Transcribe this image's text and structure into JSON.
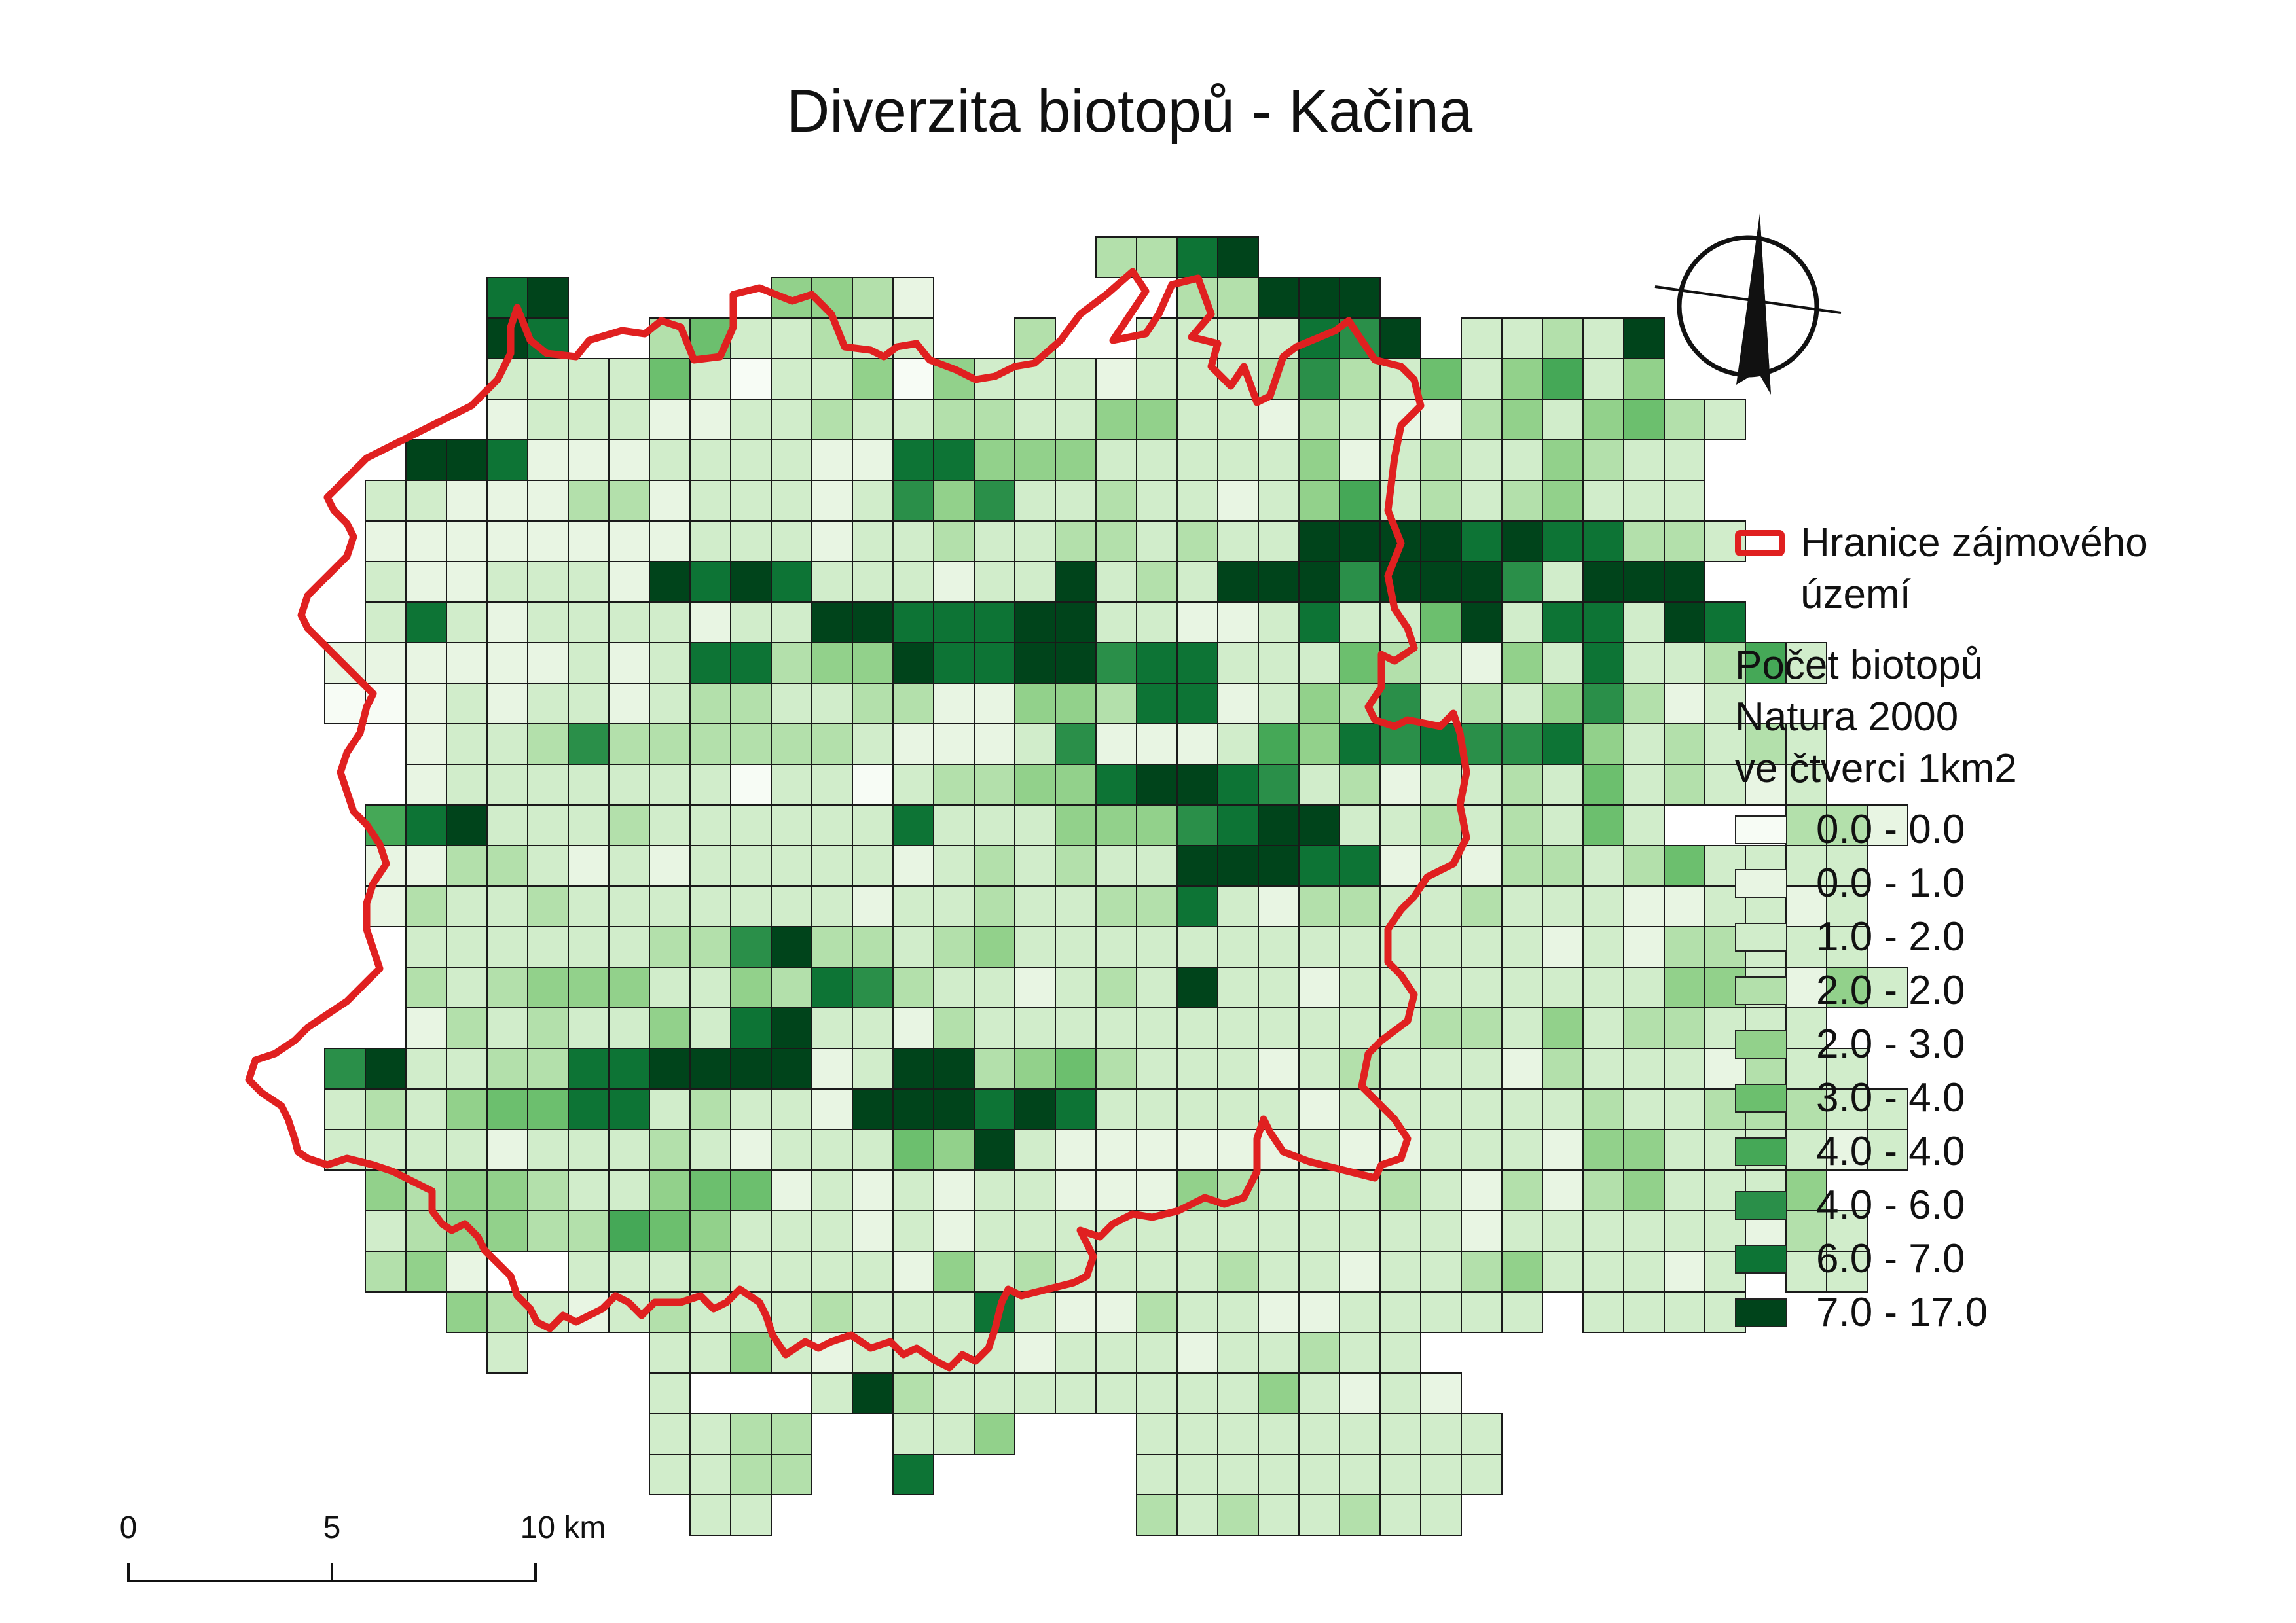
{
  "title": "Diverzita biotopů - Kačina",
  "legend": {
    "boundary_label": "Hranice zájmového\n   území",
    "boundary_color": "#e02020",
    "class_title": "Počet biotopů\n Natura 2000\n ve čtverci 1km2",
    "classes": [
      {
        "label": "0.0 - 0.0",
        "color": "#f7fcf5"
      },
      {
        "label": "0.0 - 1.0",
        "color": "#e8f5e3"
      },
      {
        "label": "1.0 - 2.0",
        "color": "#d1edcb"
      },
      {
        "label": "2.0 - 2.0",
        "color": "#b3e0ab"
      },
      {
        "label": "2.0 - 3.0",
        "color": "#92d18b"
      },
      {
        "label": "3.0 - 4.0",
        "color": "#6cbf6e"
      },
      {
        "label": "4.0 - 4.0",
        "color": "#45a857"
      },
      {
        "label": "4.0 - 6.0",
        "color": "#2a8f49"
      },
      {
        "label": "6.0 - 7.0",
        "color": "#0d7435"
      },
      {
        "label": "7.0 - 17.0",
        "color": "#00441b"
      }
    ]
  },
  "scalebar": {
    "labels": [
      "0",
      "5",
      "10 km"
    ],
    "values_km": [
      0,
      5,
      10
    ]
  },
  "north_arrow": "north-arrow-icon",
  "grid_classes": [
    "..........................................",
    ".....................3389.................",
    "......89.....4431......33999..............",
    "......98..3522322..3..2222879.22329.......",
    "......22225202240422212223732524624.......",
    "......1222112232233224422132113424532.....",
    "....99811122221188444222224123224322......",
    "...221113312221274722322124623234222......",
    "...1111111122212232233232299998988332.....",
    "...211222198982221229232999799972999......",
    "...2821222212299888992211282259288298.....",
    "..1111112128834498899788222532142822362...",
    "..00121221233223311443881243723247312.....",
    "....12237333333211127111264878778423232...",
    "....12222222022023344899872312232523212...",
    "...68922232222228222444789922323252...331.",
    "...1133212122222123232299988121332352222..",
    "...1322322222221223223382133223222112212..",
    "....222222337933234222222222222212133222..",
    "....3234442243873221232922122222222442142..",
    "....13232242892213222222222223324233222...",
    "..79223388999912993453222123222132221322..",
    "..232455882322199989822222122222232233322.",
    "..222212223212225492111111211222144222212.",
    "...434432245512121221114322232131342224...",
    "...2344336542221212222222222221222222132..",
    "...341..22232222142322223221223422212.22..",
    ".....432123222322282113221122222.2222.....",
    "......2...2242122221222122322..............",
    "..........2...2932222222242121.............",
    "..........2233..224...222222222...........",
    "..........2233..8.....222222222...........",
    "...........22.........32322322............"
  ],
  "grid_meta_note": ""
}
